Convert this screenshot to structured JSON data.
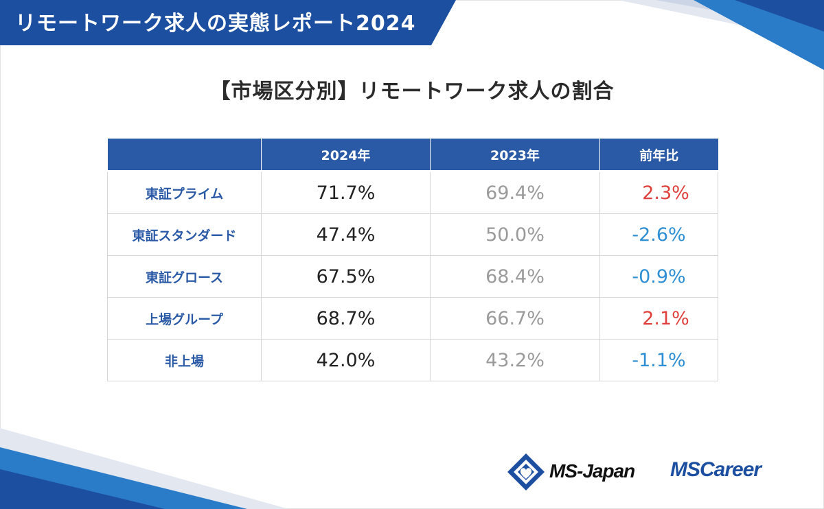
{
  "header": {
    "title": "リモートワーク求人の実態レポート2024"
  },
  "chart_data": {
    "type": "table",
    "title": "【市場区分別】リモートワーク求人の割合",
    "columns": [
      "",
      "2024年",
      "2023年",
      "前年比"
    ],
    "rows": [
      {
        "label": "東証プライム",
        "v2024": "71.7%",
        "v2023": "69.4%",
        "diff": "2.3%",
        "trend": "up"
      },
      {
        "label": "東証スタンダード",
        "v2024": "47.4%",
        "v2023": "50.0%",
        "diff": "-2.6%",
        "trend": "down"
      },
      {
        "label": "東証グロース",
        "v2024": "67.5%",
        "v2023": "68.4%",
        "diff": "-0.9%",
        "trend": "down"
      },
      {
        "label": "上場グループ",
        "v2024": "68.7%",
        "v2023": "66.7%",
        "diff": "2.1%",
        "trend": "up"
      },
      {
        "label": "非上場",
        "v2024": "42.0%",
        "v2023": "43.2%",
        "diff": "-1.1%",
        "trend": "down"
      }
    ],
    "colors": {
      "header_bg": "#2a5aa6",
      "row_label": "#2a5aa6",
      "value_2024": "#222222",
      "value_2023": "#9a9a9a",
      "up": "#e0403c",
      "down": "#2e8fd4"
    }
  },
  "logos": {
    "ms_japan": "MS-Japan",
    "ms_career_ms": "MS",
    "ms_career_rest": "Career"
  }
}
